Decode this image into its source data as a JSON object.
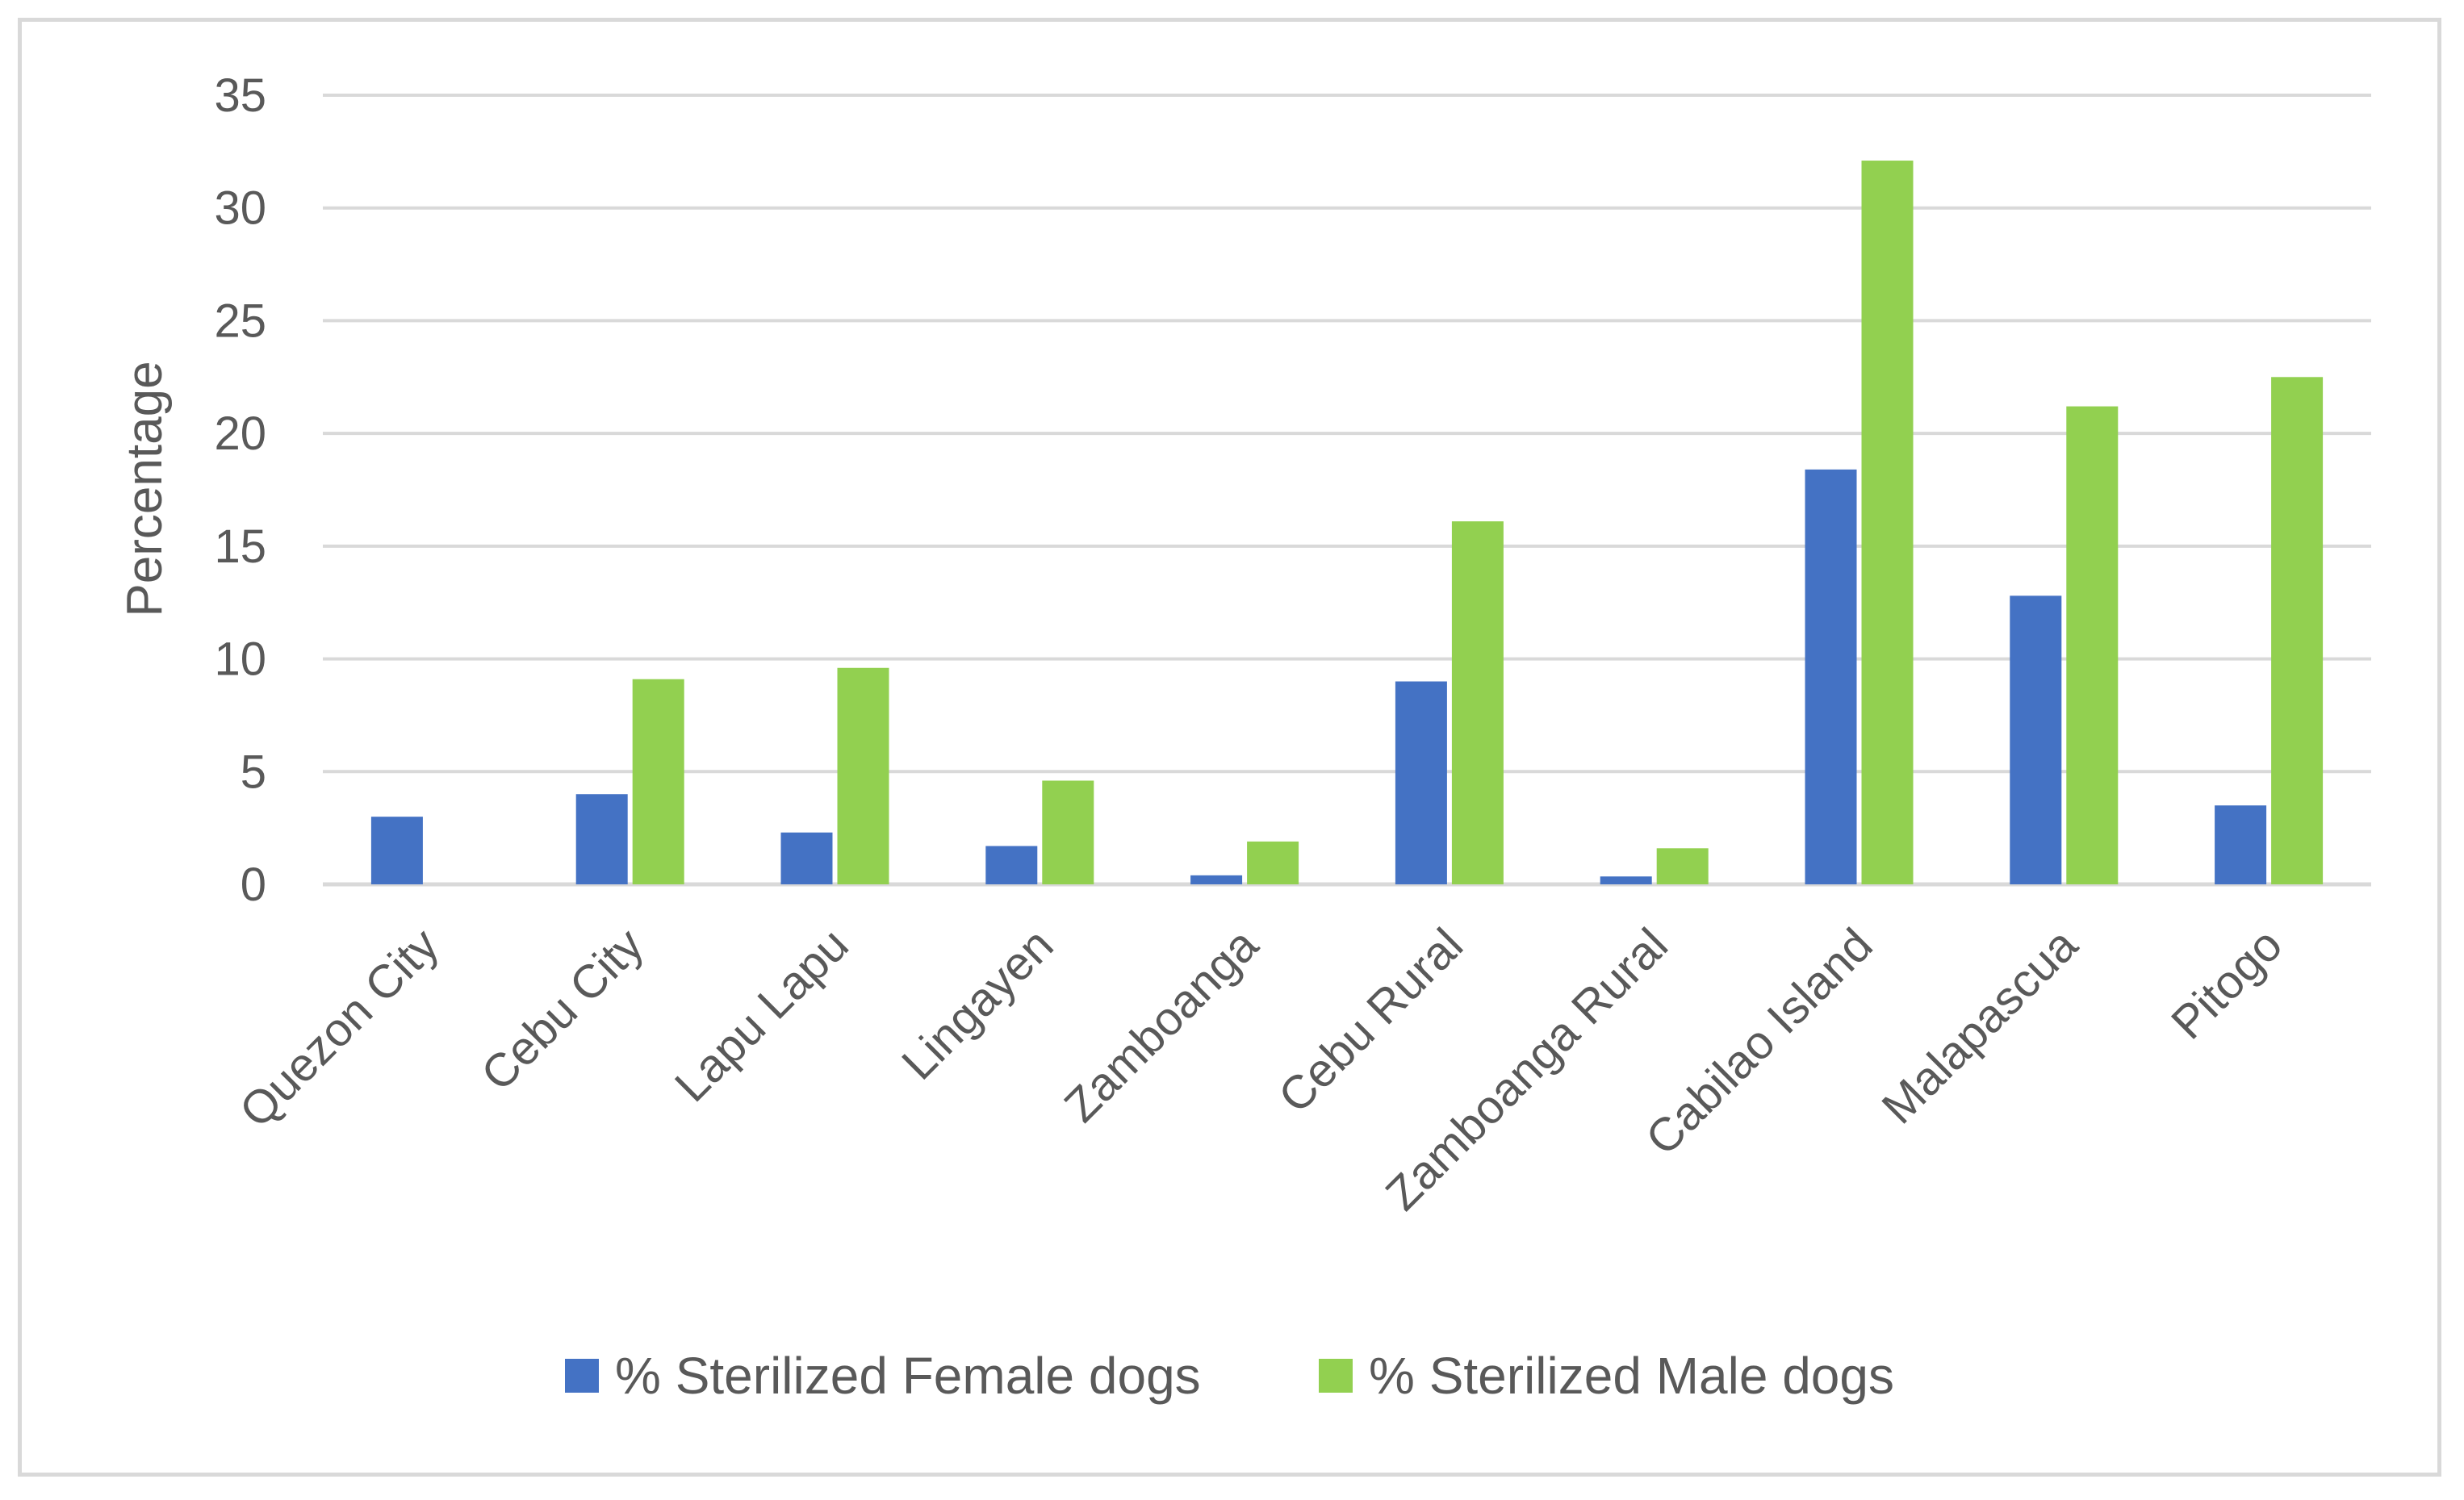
{
  "chart_data": {
    "type": "bar",
    "title": "",
    "xlabel": "",
    "ylabel": "Percentage",
    "ylim": [
      0,
      35
    ],
    "yticks": [
      0,
      5,
      10,
      15,
      20,
      25,
      30,
      35
    ],
    "grid": true,
    "legend_position": "bottom",
    "categories": [
      "Quezon City",
      "Cebu City",
      "Lapu Lapu",
      "Lingayen",
      "Zamboanga",
      "Cebu Rural",
      "Zamboanga Rural",
      "Cabilao Island",
      "Malapascua",
      "Pitogo"
    ],
    "series": [
      {
        "name": "% Sterilized Female dogs",
        "color": "#4472c4",
        "values": [
          3.0,
          4.0,
          2.3,
          1.7,
          0.4,
          9.0,
          0.35,
          18.4,
          12.8,
          3.5
        ]
      },
      {
        "name": "% Sterilized Male dogs",
        "color": "#92d050",
        "values": [
          0,
          9.1,
          9.6,
          4.6,
          1.9,
          16.1,
          1.6,
          32.1,
          21.2,
          22.5
        ]
      }
    ]
  }
}
